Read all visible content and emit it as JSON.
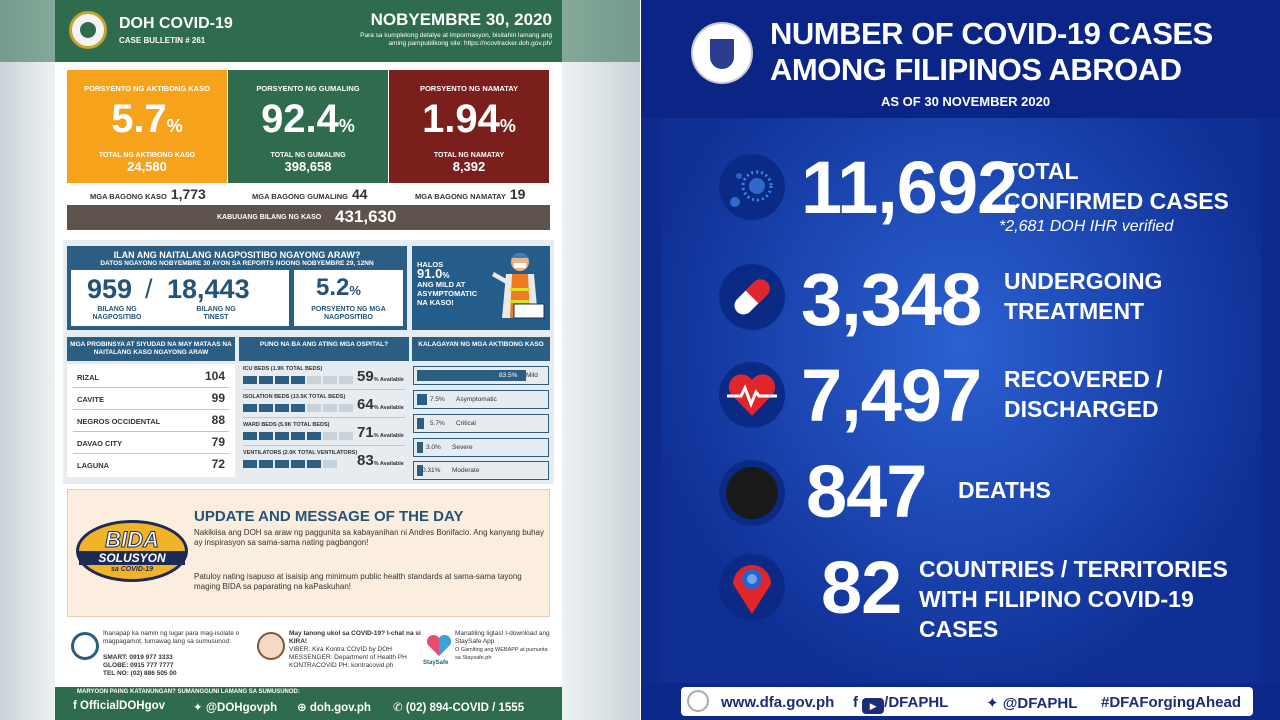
{
  "bulletin": {
    "title": "DOH COVID-19",
    "case_bulletin": "CASE BULLETIN # 261",
    "date": "NOBYEMBRE 30, 2020",
    "subtext": "Para sa kumpletong detalye at impormasyon, bisitahin lamang ang aming pampublikong site: https://ncovtracker.doh.gov.ph/",
    "stats": [
      {
        "label": "PORSYENTO NG AKTIBONG KASO",
        "percent": "5.7",
        "sub_label": "TOTAL NG AKTIBONG KASO",
        "total": "24,580",
        "color": "#f7a21b"
      },
      {
        "label": "PORSYENTO NG GUMALING",
        "percent": "92.4",
        "sub_label": "TOTAL NG GUMALING",
        "total": "398,658",
        "color": "#2f6b4d"
      },
      {
        "label": "PORSYENTO NG NAMATAY",
        "percent": "1.94",
        "sub_label": "TOTAL NG NAMATAY",
        "total": "8,392",
        "color": "#7a1f1c"
      }
    ],
    "pct_sign": "%",
    "new_cases": {
      "label": "MGA BAGONG KASO",
      "value": "1,773"
    },
    "new_recovered": {
      "label": "MGA BAGONG GUMALING",
      "value": "44"
    },
    "new_deaths": {
      "label": "MGA BAGONG NAMATAY",
      "value": "19"
    },
    "total": {
      "label": "KABUUANG BILANG NG KASO",
      "value": "431,630"
    },
    "positives": {
      "heading": "ILAN ANG NAITALANG NAGPOSITIBO NGAYONG ARAW?",
      "subheading": "DATOS NGAYONG NOBYEMBRE 30 AYON SA REPORTS NOONG NOBYEMBRE 29, 12NN",
      "positive": "959",
      "slash": "/",
      "tested": "18,443",
      "positive_label": "BILANG NG NAGPOSITIBO",
      "tested_label": "BILANG NG TINEST",
      "rate": "5.2",
      "rate_label": "PORSYENTO NG MGA NAGPOSITIBO"
    },
    "halos": {
      "line1": "HALOS",
      "value": "91.0",
      "rest": "ANG MILD AT ASYMPTOMATIC NA KASO!"
    },
    "provinces": {
      "heading": "MGA PROBINSYA AT SIYUDAD NA MAY MATAAS NA NAITALANG KASO NGAYONG ARAW",
      "rows": [
        {
          "name": "RIZAL",
          "value": "104"
        },
        {
          "name": "CAVITE",
          "value": "99"
        },
        {
          "name": "NEGROS OCCIDENTAL",
          "value": "88"
        },
        {
          "name": "DAVAO CITY",
          "value": "79"
        },
        {
          "name": "LAGUNA",
          "value": "72"
        }
      ]
    },
    "hospitals": {
      "heading": "PUNO NA BA ANG ATING MGA OSPITAL?",
      "available": "Available",
      "rows": [
        {
          "label": "ICU BEDS (1.9K TOTAL BEDS)",
          "value": "59"
        },
        {
          "label": "ISOLATION BEDS (13.5K TOTAL BEDS)",
          "value": "64"
        },
        {
          "label": "WARD BEDS (5.9K TOTAL BEDS)",
          "value": "71"
        },
        {
          "label": "VENTILATORS (2.0K TOTAL VENTILATORS)",
          "value": "83"
        }
      ]
    },
    "severity": {
      "heading": "KALAGAYAN NG MGA AKTIBONG KASO",
      "rows": [
        {
          "pct": "83.5%",
          "label": "Mild",
          "fraction": 0.835
        },
        {
          "pct": "7.5%",
          "label": "Asymptomatic",
          "fraction": 0.075
        },
        {
          "pct": "5.7%",
          "label": "Critical",
          "fraction": 0.057
        },
        {
          "pct": "3.0%",
          "label": "Severe",
          "fraction": 0.03
        },
        {
          "pct": "0.31%",
          "label": "Moderate",
          "fraction": 0.0031
        }
      ]
    },
    "update": {
      "title": "UPDATE AND MESSAGE OF THE DAY",
      "p1": "Nakikiisa ang DOH sa araw ng paggunita sa kabayanihan ni Andres Bonifacio. Ang kanyang buhay ay inspirasyon sa sama-sama nating pagbangon!",
      "p2": "Patuloy nating isapuso at isaisip ang minimum public health standards at sama-sama tayong maging BIDA sa paparating na kaPaskuhan!",
      "logo_top": "BIDA",
      "logo_mid": "SOLUSYON",
      "logo_bottom": "sa COVID-19"
    },
    "footer": {
      "c1": "Ihanapap ka namin ng lugar para mag-isolate o magpagamot, tumawag lang sa sumusunod:",
      "c1_smart": "SMART: 0919 977 3333",
      "c1_globe": "GLOBE: 0915 777 7777",
      "c1_tel": "TEL NO: (02) 886 505 00",
      "c2": "May tanong ukol sa COVID-19? I-chat na si KIRA!",
      "c2_viber": "VIBER: Kira Kontra COVID by DOH",
      "c2_messenger": "MESSENGER: Department of Health PH",
      "c2_kontra": "KONTRACOVID PH: kontracovid.ph",
      "c3": "Manatiling ligtas! I-download ang StaySafe App",
      "c3_b": "O Gamiting ang WEBAPP at pumunta sa Staysafe.ph",
      "c3_logo": "StaySafe",
      "bar_small": "MARYOON PAING KATANUNGAN? SUMANGGUNI LAMANG SA SUMUSUNOD:",
      "fb": "OfficialDOHgov",
      "tw": "@DOHgovph",
      "web": "doh.gov.ph",
      "phone": "(02) 894-COVID  /  1555"
    }
  },
  "dfa": {
    "title1": "NUMBER OF COVID-19 CASES",
    "title2": "AMONG FILIPINOS ABROAD",
    "as_of": "AS OF 30 NOVEMBER 2020",
    "rows": [
      {
        "value": "11,692",
        "label1": "TOTAL",
        "label2": "CONFIRMED CASES",
        "note": "*2,681 DOH IHR verified",
        "icon": "virus-icon"
      },
      {
        "value": "3,348",
        "label1": "UNDERGOING",
        "label2": "TREATMENT",
        "icon": "pill-icon"
      },
      {
        "value": "7,497",
        "label1": "RECOVERED /",
        "label2": "DISCHARGED",
        "icon": "heartbeat-icon"
      },
      {
        "value": "847",
        "label1": "DEATHS",
        "icon": "black-circle-icon"
      },
      {
        "value": "82",
        "label1": "COUNTRIES / TERRITORIES",
        "label2": "WITH FILIPINO COVID-19 CASES",
        "icon": "location-pin-icon"
      }
    ],
    "footer": {
      "site": "www.dfa.gov.ph",
      "fb_yt": "/DFAPHL",
      "tw": "@DFAPHL",
      "tag": "#DFAForgingAhead"
    }
  }
}
